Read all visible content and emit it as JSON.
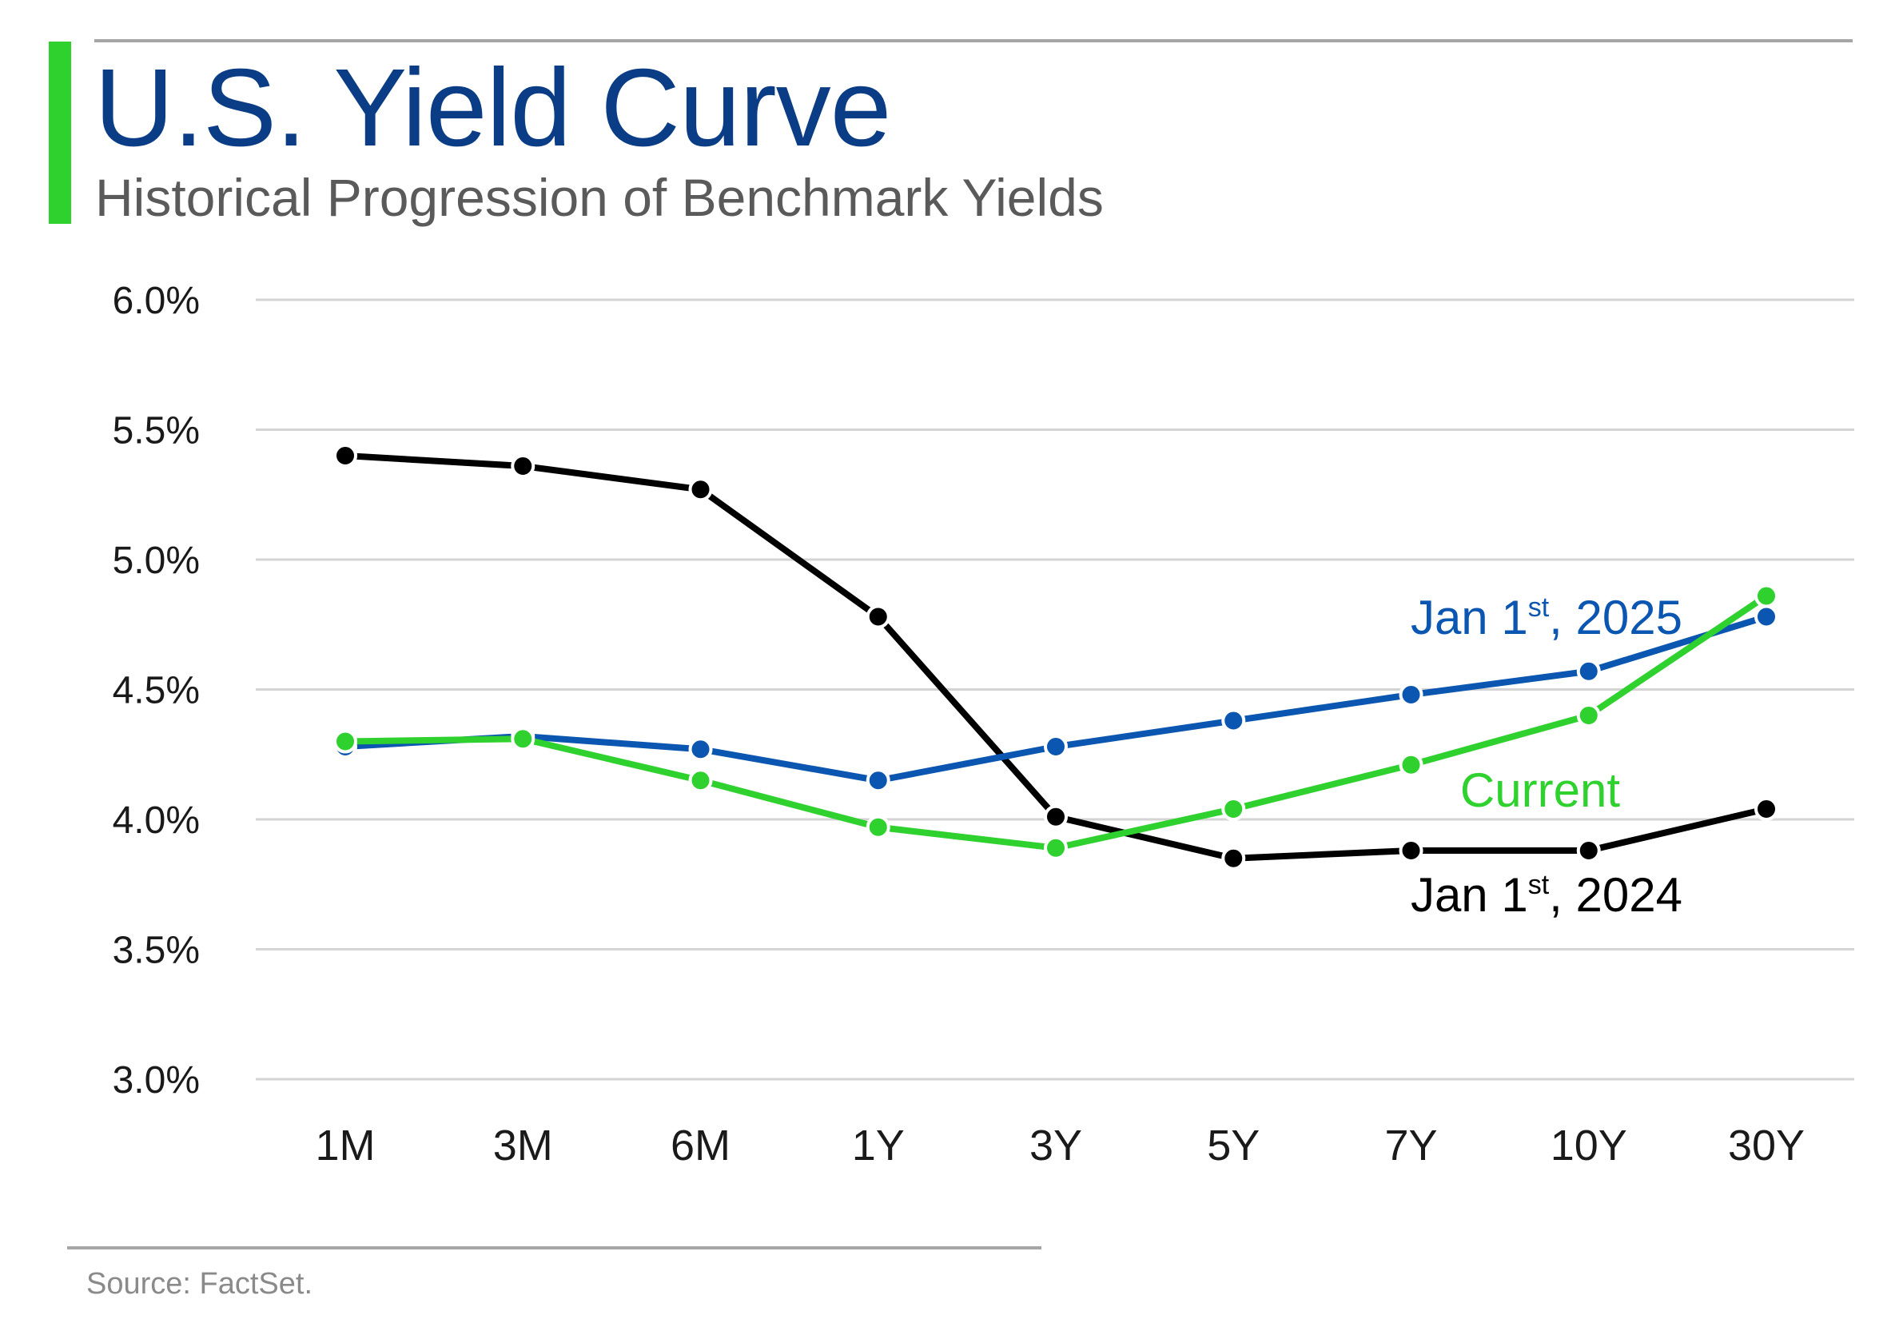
{
  "header": {
    "title": "U.S. Yield Curve",
    "subtitle": "Historical Progression of Benchmark Yields",
    "accent_color": "#2fd12f"
  },
  "footer": {
    "source": "Source: FactSet."
  },
  "chart_data": {
    "type": "line",
    "categories": [
      "1M",
      "3M",
      "6M",
      "1Y",
      "3Y",
      "5Y",
      "7Y",
      "10Y",
      "30Y"
    ],
    "ylim": [
      3.0,
      6.0
    ],
    "yticks": [
      3.0,
      3.5,
      4.0,
      4.5,
      5.0,
      5.5,
      6.0
    ],
    "ytick_labels": [
      "3.0%",
      "3.5%",
      "4.0%",
      "4.5%",
      "5.0%",
      "5.5%",
      "6.0%"
    ],
    "grid": true,
    "series": [
      {
        "key": "jan2024",
        "label_main": "Jan 1",
        "label_sup": "st",
        "label_tail": ", 2024",
        "color": "#000000",
        "values": [
          5.4,
          5.36,
          5.27,
          4.78,
          4.01,
          3.85,
          3.88,
          3.88,
          4.04
        ]
      },
      {
        "key": "jan2025",
        "label_main": "Jan 1",
        "label_sup": "st",
        "label_tail": ", 2025",
        "color": "#0a56b0",
        "values": [
          4.28,
          4.32,
          4.27,
          4.15,
          4.28,
          4.38,
          4.48,
          4.57,
          4.78
        ]
      },
      {
        "key": "current",
        "label_main": "Current",
        "label_sup": "",
        "label_tail": "",
        "color": "#2fd12f",
        "values": [
          4.3,
          4.31,
          4.15,
          3.97,
          3.89,
          4.04,
          4.21,
          4.4,
          4.86
        ]
      }
    ]
  }
}
